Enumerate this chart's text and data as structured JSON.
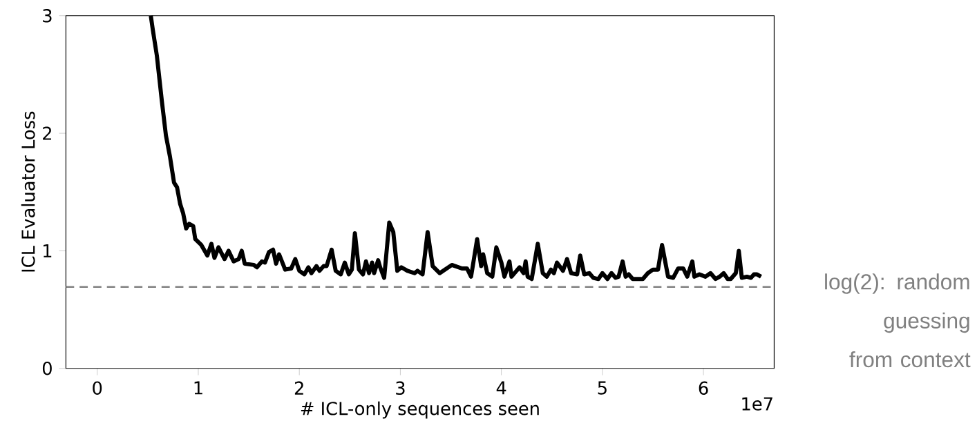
{
  "chart_data": {
    "type": "line",
    "xlabel": "# ICL-only sequences seen",
    "ylabel": "ICL Evaluator Loss",
    "annotations": [
      "1e7"
    ],
    "xlim": [
      -0.31,
      6.7
    ],
    "ylim": [
      0,
      3
    ],
    "xticks": [
      0,
      1,
      2,
      3,
      4,
      5,
      6
    ],
    "yticks": [
      0,
      1,
      2,
      3
    ],
    "grid": false,
    "marker": "none",
    "line_style": "solid",
    "ref_lines": [
      {
        "axis": "y",
        "value": 0.693,
        "label": "log(2): random guessing from context",
        "color": "#808080",
        "line_style": "dashed"
      }
    ],
    "series": [
      {
        "color": "#000000",
        "x": [
          0.53,
          0.55,
          0.59,
          0.64,
          0.68,
          0.72,
          0.76,
          0.79,
          0.82,
          0.85,
          0.88,
          0.91,
          0.95,
          0.97,
          1.03,
          1.09,
          1.13,
          1.16,
          1.2,
          1.26,
          1.3,
          1.35,
          1.4,
          1.43,
          1.46,
          1.55,
          1.58,
          1.63,
          1.66,
          1.7,
          1.74,
          1.77,
          1.8,
          1.86,
          1.92,
          1.96,
          2.0,
          2.05,
          2.09,
          2.12,
          2.17,
          2.2,
          2.24,
          2.27,
          2.32,
          2.36,
          2.41,
          2.45,
          2.49,
          2.52,
          2.55,
          2.59,
          2.63,
          2.66,
          2.69,
          2.72,
          2.74,
          2.78,
          2.8,
          2.84,
          2.89,
          2.93,
          2.97,
          3.01,
          3.07,
          3.14,
          3.17,
          3.22,
          3.27,
          3.32,
          3.39,
          3.51,
          3.61,
          3.66,
          3.7,
          3.76,
          3.8,
          3.82,
          3.86,
          3.91,
          3.95,
          4.0,
          4.03,
          4.08,
          4.1,
          4.15,
          4.18,
          4.22,
          4.24,
          4.26,
          4.3,
          4.36,
          4.41,
          4.45,
          4.49,
          4.52,
          4.55,
          4.61,
          4.65,
          4.69,
          4.75,
          4.78,
          4.82,
          4.87,
          4.91,
          4.96,
          5.0,
          5.05,
          5.09,
          5.13,
          5.16,
          5.2,
          5.23,
          5.26,
          5.3,
          5.4,
          5.45,
          5.5,
          5.55,
          5.59,
          5.65,
          5.7,
          5.75,
          5.8,
          5.84,
          5.89,
          5.91,
          5.96,
          6.02,
          6.07,
          6.12,
          6.16,
          6.2,
          6.24,
          6.27,
          6.32,
          6.35,
          6.38,
          6.43,
          6.47,
          6.5,
          6.53,
          6.57
        ],
        "values": [
          3.0,
          2.88,
          2.66,
          2.27,
          1.98,
          1.8,
          1.58,
          1.54,
          1.4,
          1.32,
          1.19,
          1.23,
          1.21,
          1.1,
          1.05,
          0.96,
          1.06,
          0.94,
          1.03,
          0.93,
          1.0,
          0.91,
          0.93,
          1.0,
          0.89,
          0.88,
          0.86,
          0.91,
          0.9,
          0.99,
          1.01,
          0.89,
          0.97,
          0.84,
          0.85,
          0.93,
          0.83,
          0.8,
          0.86,
          0.81,
          0.87,
          0.83,
          0.87,
          0.87,
          1.01,
          0.83,
          0.8,
          0.9,
          0.8,
          0.84,
          1.15,
          0.84,
          0.8,
          0.91,
          0.81,
          0.9,
          0.81,
          0.92,
          0.86,
          0.77,
          1.24,
          1.16,
          0.83,
          0.86,
          0.83,
          0.81,
          0.83,
          0.8,
          1.16,
          0.87,
          0.81,
          0.88,
          0.85,
          0.85,
          0.78,
          1.1,
          0.87,
          0.97,
          0.81,
          0.78,
          1.03,
          0.9,
          0.78,
          0.91,
          0.78,
          0.83,
          0.86,
          0.81,
          0.91,
          0.78,
          0.76,
          1.06,
          0.81,
          0.78,
          0.84,
          0.81,
          0.9,
          0.83,
          0.93,
          0.81,
          0.8,
          0.96,
          0.8,
          0.81,
          0.77,
          0.76,
          0.81,
          0.76,
          0.81,
          0.77,
          0.78,
          0.91,
          0.78,
          0.8,
          0.76,
          0.76,
          0.81,
          0.84,
          0.84,
          1.05,
          0.78,
          0.77,
          0.85,
          0.85,
          0.78,
          0.91,
          0.78,
          0.8,
          0.78,
          0.81,
          0.76,
          0.78,
          0.81,
          0.76,
          0.76,
          0.81,
          1.0,
          0.77,
          0.78,
          0.77,
          0.8,
          0.8,
          0.78
        ]
      }
    ]
  }
}
